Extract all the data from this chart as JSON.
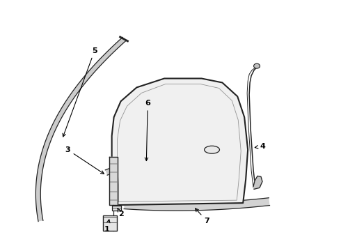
{
  "bg": "#ffffff",
  "lc": "#222222",
  "labels": [
    "1",
    "2",
    "3",
    "4",
    "5",
    "6",
    "7"
  ]
}
